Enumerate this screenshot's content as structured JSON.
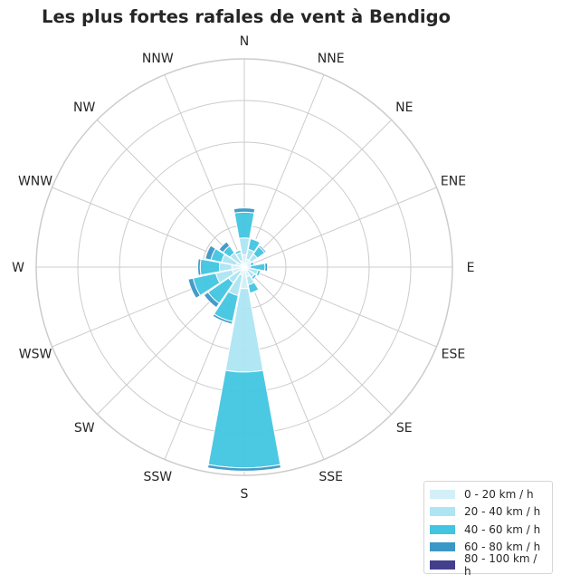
{
  "chart_data": {
    "type": "wind-rose",
    "title": "Les plus fortes rafales de vent à Bendigo",
    "directions": [
      "N",
      "NNE",
      "NE",
      "ENE",
      "E",
      "ESE",
      "SE",
      "SSE",
      "S",
      "SSW",
      "SW",
      "WSW",
      "W",
      "WNW",
      "NW",
      "NNW"
    ],
    "radial_rings": 5,
    "grid": true,
    "legend_position": "bottom-right",
    "series": [
      {
        "name": "0 - 20 km / h",
        "color": "#d3f0f7",
        "values": [
          1.5,
          1.0,
          1.0,
          0.3,
          0.2,
          0.5,
          0.5,
          1.2,
          2.6,
          1.0,
          0.6,
          1.5,
          1.5,
          1.0,
          0.5,
          0.8
        ]
      },
      {
        "name": "20 - 40 km / h",
        "color": "#ade5f3",
        "values": [
          2.0,
          1.2,
          0.9,
          0.5,
          0.5,
          1.2,
          1.0,
          1.0,
          10.0,
          2.5,
          1.7,
          2.0,
          1.5,
          1.8,
          1.6,
          1.0
        ]
      },
      {
        "name": "40 - 60 km / h",
        "color": "#41c5e0",
        "values": [
          3.1,
          1.3,
          1.1,
          0.4,
          1.8,
          0.3,
          0.3,
          1.0,
          11.5,
          3.2,
          3.0,
          2.8,
          2.3,
          1.3,
          1.0,
          0.3
        ]
      },
      {
        "name": "60 - 80 km / h",
        "color": "#3b97c6",
        "values": [
          0.5,
          0.1,
          0.2,
          0.0,
          0.3,
          0.0,
          0.0,
          0.1,
          0.4,
          0.3,
          0.6,
          0.6,
          0.3,
          0.7,
          0.6,
          0.1
        ]
      },
      {
        "name": "80 - 100 km / h",
        "color": "#433f8c",
        "values": [
          0.0,
          0.0,
          0.0,
          0.0,
          0.0,
          0.0,
          0.0,
          0.0,
          0.0,
          0.0,
          0.0,
          0.0,
          0.0,
          0.0,
          0.0,
          0.0
        ]
      }
    ]
  }
}
